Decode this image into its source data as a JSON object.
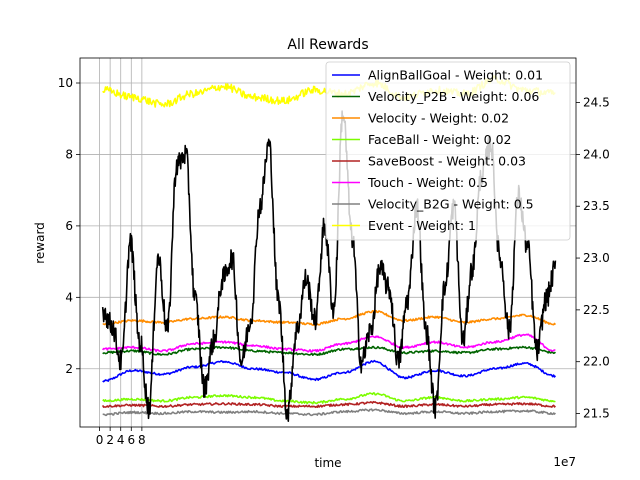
{
  "chart_data": {
    "type": "line",
    "title": "All Rewards",
    "xlabel": "time",
    "ylabel": "reward",
    "x_offset_label": "1e7",
    "xlim": [
      -3.7,
      90.1
    ],
    "ylim": [
      0.37,
      10.7
    ],
    "y2lim": [
      21.37,
      24.93
    ],
    "x_ticks": [
      0,
      2,
      4,
      6,
      8
    ],
    "y_ticks": [
      2,
      4,
      6,
      8,
      10
    ],
    "y2_ticks": [
      21.5,
      22.0,
      22.5,
      23.0,
      23.5,
      24.0,
      24.5
    ],
    "x_tick_labels": [
      "0",
      "2",
      "4",
      "6",
      "8"
    ],
    "y_tick_labels": [
      "2",
      "4",
      "6",
      "8",
      "10"
    ],
    "y2_tick_labels": [
      "21.5",
      "22.0",
      "22.5",
      "23.0",
      "23.5",
      "24.0",
      "24.5"
    ],
    "grid": true,
    "legend_position": "top-right",
    "x_range": [
      0.6,
      86.2
    ],
    "series": [
      {
        "name": "AlignBallGoal - Weight: 0.01",
        "color": "#0000ff",
        "axis": "left",
        "values": [
          1.65,
          1.95,
          1.85,
          2.05,
          2.2,
          2.0,
          1.9,
          1.7,
          1.9,
          2.2,
          1.75,
          1.95,
          1.8,
          2.0,
          2.15,
          1.8
        ]
      },
      {
        "name": "Velocity_P2B - Weight: 0.06",
        "color": "#006400",
        "axis": "left",
        "values": [
          2.45,
          2.5,
          2.4,
          2.55,
          2.6,
          2.5,
          2.45,
          2.4,
          2.55,
          2.6,
          2.45,
          2.5,
          2.45,
          2.55,
          2.6,
          2.45
        ]
      },
      {
        "name": "Velocity - Weight: 0.02",
        "color": "#ff8c00",
        "axis": "left",
        "values": [
          3.25,
          3.35,
          3.3,
          3.4,
          3.45,
          3.35,
          3.3,
          3.25,
          3.4,
          3.6,
          3.35,
          3.45,
          3.3,
          3.4,
          3.5,
          3.25
        ]
      },
      {
        "name": "FaceBall - Weight: 0.02",
        "color": "#7cfc00",
        "axis": "left",
        "values": [
          1.1,
          1.15,
          1.1,
          1.2,
          1.25,
          1.2,
          1.1,
          1.05,
          1.15,
          1.3,
          1.1,
          1.2,
          1.1,
          1.15,
          1.2,
          1.1
        ]
      },
      {
        "name": "SaveBoost - Weight: 0.03",
        "color": "#b22222",
        "axis": "left",
        "values": [
          0.95,
          0.98,
          0.95,
          1.0,
          1.02,
          1.0,
          0.95,
          0.95,
          1.0,
          1.05,
          0.95,
          1.0,
          0.95,
          1.0,
          1.02,
          0.95
        ]
      },
      {
        "name": "Touch - Weight: 0.5",
        "color": "#ff00ff",
        "axis": "left",
        "values": [
          2.55,
          2.6,
          2.5,
          2.7,
          2.75,
          2.65,
          2.55,
          2.5,
          2.7,
          2.9,
          2.6,
          2.75,
          2.6,
          2.75,
          2.95,
          2.5
        ]
      },
      {
        "name": "Velocity_B2G - Weight: 0.5",
        "color": "#808080",
        "axis": "left",
        "values": [
          0.72,
          0.78,
          0.75,
          0.8,
          0.78,
          0.8,
          0.75,
          0.72,
          0.8,
          0.85,
          0.75,
          0.8,
          0.75,
          0.8,
          0.82,
          0.75
        ]
      },
      {
        "name": "Event - Weight: 1",
        "color": "#ffff00",
        "axis": "left",
        "values": [
          9.8,
          9.6,
          9.4,
          9.7,
          9.9,
          9.6,
          9.5,
          9.8,
          9.7,
          10.0,
          9.6,
          9.8,
          9.7,
          10.1,
          9.8,
          9.7
        ]
      },
      {
        "name": "",
        "color": "#000000",
        "axis": "right",
        "values": [
          22.5,
          22.35,
          22.0,
          23.15,
          22.2,
          21.55,
          23.0,
          22.3,
          23.9,
          24.0,
          22.6,
          21.75,
          22.2,
          22.8,
          23.0,
          22.0,
          22.4,
          23.5,
          24.1,
          22.6,
          21.5,
          22.3,
          22.8,
          22.4,
          23.3,
          22.5,
          24.4,
          23.2,
          22.0,
          22.3,
          22.9,
          22.7,
          22.0,
          22.6,
          23.5,
          22.3,
          21.55,
          22.7,
          23.5,
          22.2,
          22.9,
          23.8,
          24.1,
          23.0,
          22.3,
          23.6,
          23.1,
          22.1,
          22.6,
          22.9
        ]
      }
    ]
  }
}
